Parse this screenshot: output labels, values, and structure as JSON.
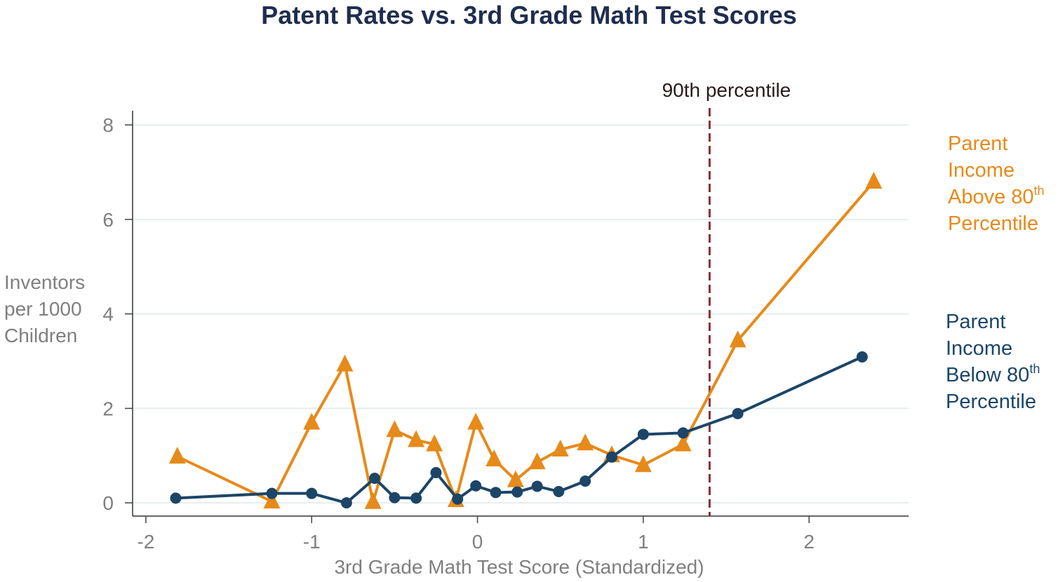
{
  "chart_data": {
    "type": "line",
    "title": "Patent Rates vs. 3rd Grade Math Test Scores",
    "xlabel": "3rd Grade Math Test Score (Standardized)",
    "ylabel_lines": [
      "Inventors",
      "per 1000",
      "Children"
    ],
    "xlim": [
      -2.08,
      2.6
    ],
    "ylim": [
      -0.28,
      8.3
    ],
    "xticks": [
      -2,
      -1,
      0,
      1,
      2
    ],
    "xtick_labels": [
      "-2",
      "-1",
      "0",
      "1",
      "2"
    ],
    "yticks": [
      0,
      2,
      4,
      6,
      8
    ],
    "ytick_labels": [
      "0",
      "2",
      "4",
      "6",
      "8"
    ],
    "grid": "horizontal",
    "reference_line": {
      "x": 1.4,
      "label": "90th percentile",
      "color": "#8b2f3a"
    },
    "series": [
      {
        "name": "Parent Income Above 80th Percentile",
        "label_lines": [
          "Parent",
          "Income",
          "Above 80",
          "Percentile"
        ],
        "label_sup": "th",
        "color": "#e68a1a",
        "marker": "triangle",
        "x": [
          -1.81,
          -1.24,
          -1.0,
          -0.8,
          -0.63,
          -0.5,
          -0.37,
          -0.26,
          -0.13,
          -0.01,
          0.1,
          0.23,
          0.36,
          0.5,
          0.65,
          0.81,
          1.0,
          1.24,
          1.57,
          2.39
        ],
        "y": [
          0.98,
          0.03,
          1.7,
          2.93,
          0.02,
          1.54,
          1.33,
          1.24,
          0.06,
          1.7,
          0.92,
          0.48,
          0.86,
          1.13,
          1.26,
          1.01,
          0.8,
          1.24,
          3.44,
          6.8
        ]
      },
      {
        "name": "Parent Income Below 80th Percentile",
        "label_lines": [
          "Parent",
          "Income",
          "Below 80",
          "Percentile"
        ],
        "label_sup": "th",
        "color": "#1c4568",
        "marker": "circle",
        "x": [
          -1.82,
          -1.24,
          -1.0,
          -0.79,
          -0.62,
          -0.5,
          -0.37,
          -0.25,
          -0.12,
          -0.01,
          0.11,
          0.24,
          0.36,
          0.49,
          0.65,
          0.81,
          1.0,
          1.24,
          1.57,
          2.32
        ],
        "y": [
          0.1,
          0.2,
          0.2,
          0.0,
          0.52,
          0.11,
          0.1,
          0.64,
          0.08,
          0.36,
          0.22,
          0.23,
          0.35,
          0.24,
          0.46,
          0.97,
          1.45,
          1.48,
          1.89,
          3.09
        ]
      }
    ]
  }
}
